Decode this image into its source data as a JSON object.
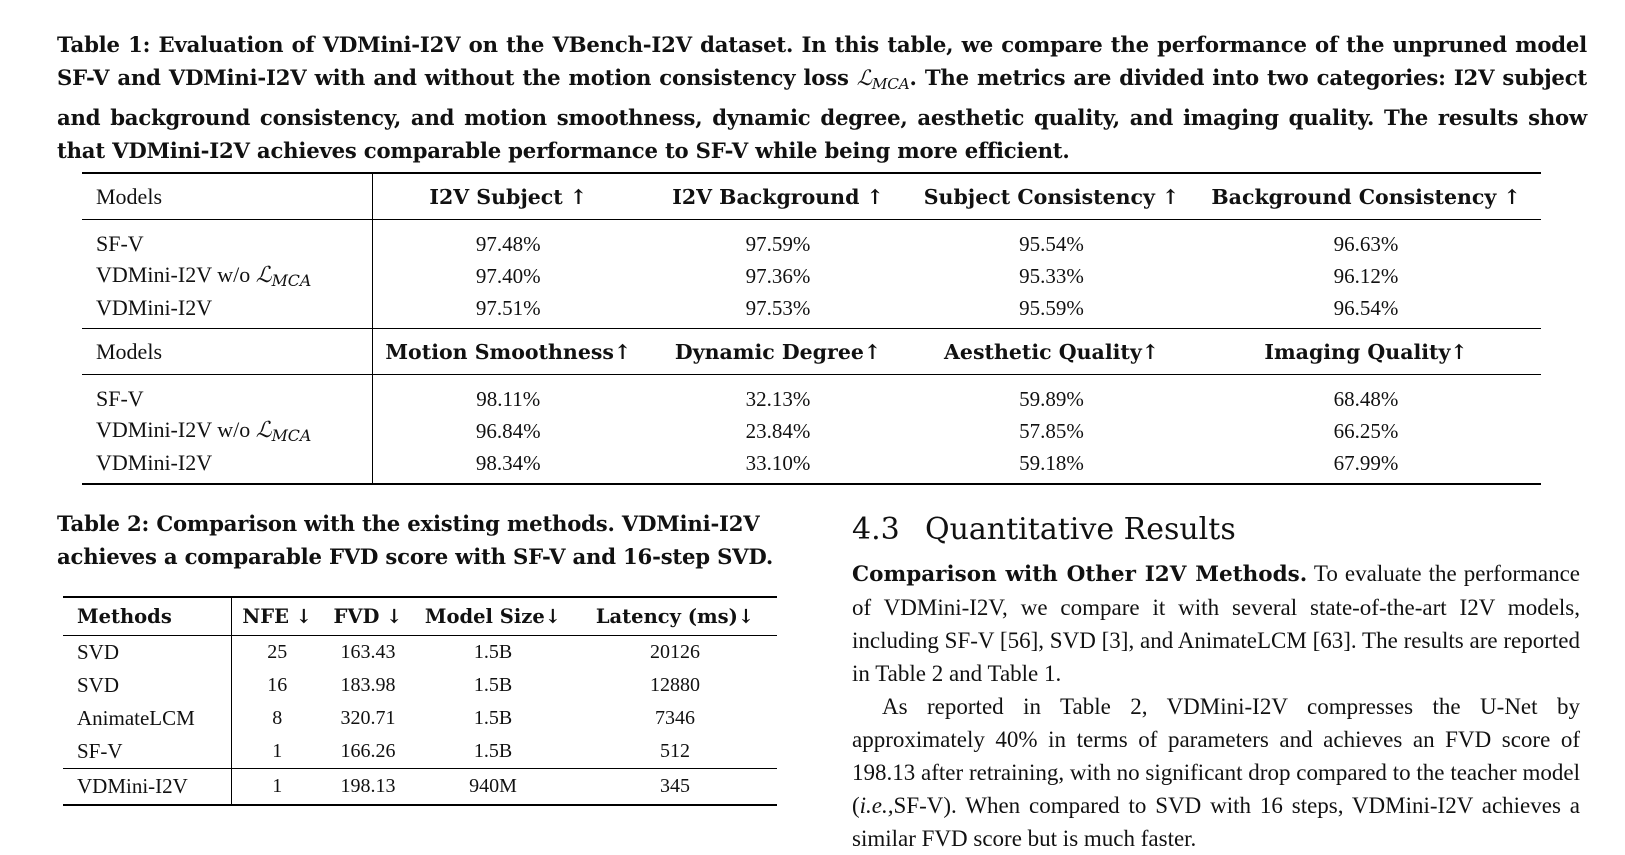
{
  "table1": {
    "caption_pre": "Table 1: Evaluation of VDMini-I2V on the VBench-I2V dataset. In this table, we compare the performance of the unpruned model SF-V and VDMini-I2V with and without the motion consistency loss ",
    "caption_math": "ℒ",
    "caption_math_sub": "MCA",
    "caption_post": ". The metrics are divided into two categories: I2V subject and background consistency, and motion smoothness, dynamic degree, aesthetic quality, and imaging quality. The results show that VDMini-I2V achieves comparable performance to SF-V while being more efficient.",
    "math_symbol": "ℒ",
    "math_sub": "MCA",
    "part1": {
      "models_label": "Models",
      "columns": [
        "I2V Subject ↑",
        "I2V Background ↑",
        "Subject Consistency ↑",
        "Background Consistency ↑"
      ],
      "rows": [
        {
          "model": "SF-V",
          "values": [
            "97.48%",
            "97.59%",
            "95.54%",
            "96.63%"
          ]
        },
        {
          "model": "VDMini-I2V w/o ",
          "values": [
            "97.40%",
            "97.36%",
            "95.33%",
            "96.12%"
          ]
        },
        {
          "model": "VDMini-I2V",
          "values": [
            "97.51%",
            "97.53%",
            "95.59%",
            "96.54%"
          ]
        }
      ]
    },
    "part2": {
      "models_label": "Models",
      "columns": [
        "Motion Smoothness↑",
        "Dynamic Degree↑",
        "Aesthetic Quality↑",
        "Imaging Quality↑"
      ],
      "rows": [
        {
          "model": "SF-V",
          "values": [
            "98.11%",
            "32.13%",
            "59.89%",
            "68.48%"
          ]
        },
        {
          "model": "VDMini-I2V w/o ",
          "values": [
            "96.84%",
            "23.84%",
            "57.85%",
            "66.25%"
          ]
        },
        {
          "model": "VDMini-I2V",
          "values": [
            "98.34%",
            "33.10%",
            "59.18%",
            "67.99%"
          ]
        }
      ]
    }
  },
  "table2": {
    "caption": "Table 2: Comparison with the existing methods. VDMini-I2V achieves a comparable FVD score with SF-V and 16-step SVD.",
    "columns": [
      "Methods",
      "NFE ↓",
      "FVD ↓",
      "Model Size↓",
      "Latency (ms)↓"
    ],
    "rows": [
      [
        "SVD",
        "25",
        "163.43",
        "1.5B",
        "20126"
      ],
      [
        "SVD",
        "16",
        "183.98",
        "1.5B",
        "12880"
      ],
      [
        "AnimateLCM",
        "8",
        "320.71",
        "1.5B",
        "7346"
      ],
      [
        "SF-V",
        "1",
        "166.26",
        "1.5B",
        "512"
      ],
      [
        "VDMini-I2V",
        "1",
        "198.13",
        "940M",
        "345"
      ]
    ]
  },
  "section": {
    "number": "4.3",
    "title": "Quantitative Results",
    "para1_runin": "Comparison with Other I2V Methods.",
    "para1_text": " To evaluate the performance of VDMini-I2V, we compare it with several state-of-the-art I2V models, including SF-V [56], SVD [3], and AnimateLCM [63]. The results are reported in Table 2 and Table 1.",
    "para2_pre": "As reported in Table 2, VDMini-I2V compresses the U-Net by approximately 40% in terms of parameters and achieves an FVD score of 198.13 after retraining, with no significant drop compared to the teacher model (",
    "para2_ital": "i.e.,",
    "para2_post": "SF-V). When compared to SVD with 16 steps, VDMini-I2V achieves a similar FVD score but is much faster."
  }
}
